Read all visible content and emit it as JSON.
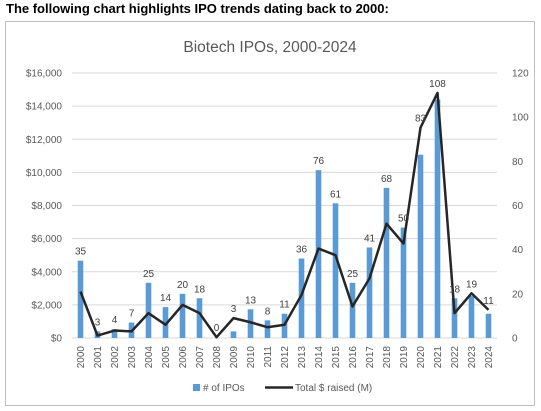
{
  "heading": "The following chart highlights IPO trends dating back to 2000:",
  "colors": {
    "bars": "#5b9bd5",
    "line": "#262626",
    "grid": "#d9d9d9"
  },
  "chart_data": {
    "type": "bar",
    "title": "Biotech IPOs, 2000-2024",
    "categories": [
      "2000",
      "2001",
      "2002",
      "2003",
      "2004",
      "2005",
      "2006",
      "2007",
      "2008",
      "2009",
      "2010",
      "2011",
      "2012",
      "2013",
      "2014",
      "2015",
      "2016",
      "2017",
      "2018",
      "2019",
      "2020",
      "2021",
      "2022",
      "2023",
      "2024"
    ],
    "series": [
      {
        "name": "# of IPOs",
        "type": "bar",
        "axis": "right",
        "values": [
          35,
          3,
          4,
          7,
          25,
          14,
          20,
          18,
          0,
          3,
          13,
          8,
          11,
          36,
          76,
          61,
          25,
          41,
          68,
          50,
          83,
          108,
          18,
          19,
          11
        ]
      },
      {
        "name": "Total $ raised (M)",
        "type": "line",
        "axis": "left",
        "values": [
          2800,
          150,
          450,
          400,
          1500,
          800,
          2000,
          1500,
          50,
          1200,
          950,
          650,
          800,
          2600,
          5400,
          5000,
          1900,
          3600,
          6900,
          5700,
          12700,
          14800,
          1500,
          2700,
          1700
        ]
      }
    ],
    "y_left": {
      "min": 0,
      "max": 16000,
      "ticks": [
        "$0",
        "$2,000",
        "$4,000",
        "$6,000",
        "$8,000",
        "$10,000",
        "$12,000",
        "$14,000",
        "$16,000"
      ]
    },
    "y_right": {
      "min": 0,
      "max": 120,
      "ticks": [
        "0",
        "20",
        "40",
        "60",
        "80",
        "100",
        "120"
      ]
    },
    "grid": true,
    "legend": "bottom"
  }
}
